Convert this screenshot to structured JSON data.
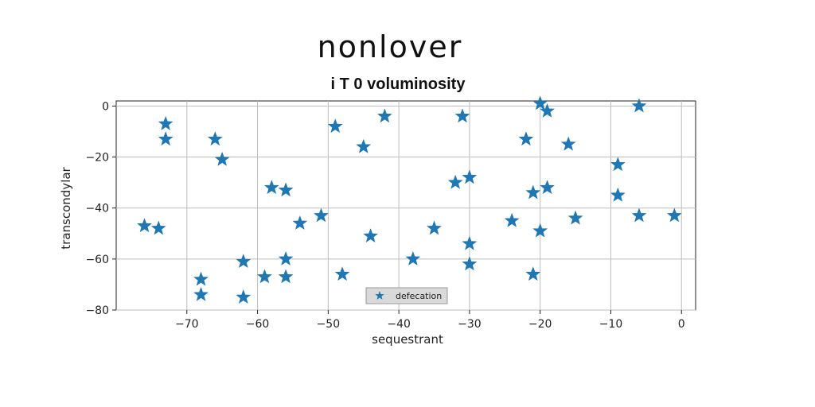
{
  "chart_data": {
    "type": "scatter",
    "title": "nonlover",
    "subtitle": "i T 0 voluminosity",
    "xlabel": "sequestrant",
    "ylabel": "transcondylar",
    "xlim": [
      -80,
      2
    ],
    "ylim": [
      -80,
      2
    ],
    "xticks": [
      -70,
      -60,
      -50,
      -40,
      -30,
      -20,
      -10,
      0
    ],
    "yticks": [
      0,
      -20,
      -40,
      -60,
      -80
    ],
    "grid": true,
    "legend_position": "lower-center",
    "marker": "star",
    "color": "#1f77b4",
    "series": [
      {
        "name": "defecation",
        "points": [
          [
            -73,
            -7
          ],
          [
            -73,
            -13
          ],
          [
            -66,
            -13
          ],
          [
            -65,
            -21
          ],
          [
            -76,
            -47
          ],
          [
            -74,
            -48
          ],
          [
            -68,
            -68
          ],
          [
            -68,
            -74
          ],
          [
            -62,
            -61
          ],
          [
            -62,
            -75
          ],
          [
            -59,
            -67
          ],
          [
            -58,
            -32
          ],
          [
            -56,
            -33
          ],
          [
            -56,
            -67
          ],
          [
            -56,
            -60
          ],
          [
            -54,
            -46
          ],
          [
            -51,
            -43
          ],
          [
            -49,
            -8
          ],
          [
            -48,
            -66
          ],
          [
            -45,
            -16
          ],
          [
            -44,
            -51
          ],
          [
            -42,
            -4
          ],
          [
            -38,
            -60
          ],
          [
            -35,
            -48
          ],
          [
            -32,
            -30
          ],
          [
            -31,
            -4
          ],
          [
            -30,
            -28
          ],
          [
            -30,
            -54
          ],
          [
            -30,
            -62
          ],
          [
            -24,
            -45
          ],
          [
            -22,
            -13
          ],
          [
            -21,
            -34
          ],
          [
            -21,
            -66
          ],
          [
            -20,
            -49
          ],
          [
            -20,
            1
          ],
          [
            -19,
            -2
          ],
          [
            -19,
            -32
          ],
          [
            -16,
            -15
          ],
          [
            -15,
            -44
          ],
          [
            -9,
            -23
          ],
          [
            -9,
            -35
          ],
          [
            -6,
            0
          ],
          [
            -6,
            -43
          ],
          [
            -1,
            -43
          ]
        ]
      }
    ]
  }
}
